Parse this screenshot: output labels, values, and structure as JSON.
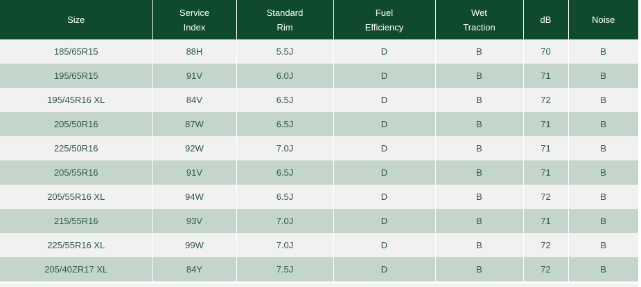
{
  "table": {
    "headers": [
      [
        "Size"
      ],
      [
        "Service",
        "Index"
      ],
      [
        "Standard",
        "Rim"
      ],
      [
        "Fuel",
        "Efficiency"
      ],
      [
        "Wet",
        "Traction"
      ],
      [
        "dB"
      ],
      [
        "Noise"
      ]
    ],
    "rows": [
      [
        "185/65R15",
        "88H",
        "5.5J",
        "D",
        "B",
        "70",
        "B"
      ],
      [
        "195/65R15",
        "91V",
        "6.0J",
        "D",
        "B",
        "71",
        "B"
      ],
      [
        "195/45R16 XL",
        "84V",
        "6.5J",
        "D",
        "B",
        "72",
        "B"
      ],
      [
        "205/50R16",
        "87W",
        "6.5J",
        "D",
        "B",
        "71",
        "B"
      ],
      [
        "225/50R16",
        "92W",
        "7.0J",
        "D",
        "B",
        "71",
        "B"
      ],
      [
        "205/55R16",
        "91V",
        "6.5J",
        "D",
        "B",
        "71",
        "B"
      ],
      [
        "205/55R16 XL",
        "94W",
        "6.5J",
        "D",
        "B",
        "72",
        "B"
      ],
      [
        "215/55R16",
        "93V",
        "7.0J",
        "D",
        "B",
        "71",
        "B"
      ],
      [
        "225/55R16 XL",
        "99W",
        "7.0J",
        "D",
        "B",
        "72",
        "B"
      ],
      [
        "205/40ZR17 XL",
        "84Y",
        "7.5J",
        "D",
        "B",
        "72",
        "B"
      ]
    ]
  },
  "colors": {
    "header_bg": "#0f4a2e",
    "row_light": "#f0f1f0",
    "row_dark": "#c4d6cb",
    "cell_text": "#2e5a43"
  }
}
